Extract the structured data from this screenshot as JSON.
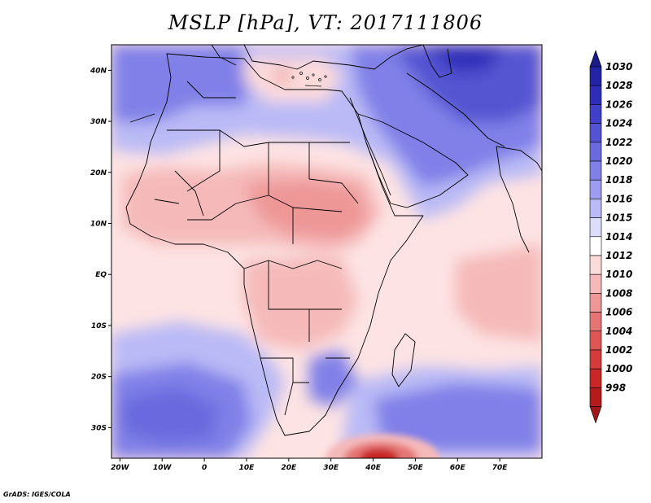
{
  "title": "MSLP [hPa], VT: 2017111806",
  "credit": "GrADS: IGES/COLA",
  "lat_ticks": [
    {
      "label": "40N",
      "lat": 40
    },
    {
      "label": "30N",
      "lat": 30
    },
    {
      "label": "20N",
      "lat": 20
    },
    {
      "label": "10N",
      "lat": 10
    },
    {
      "label": "EQ",
      "lat": 0
    },
    {
      "label": "10S",
      "lat": -10
    },
    {
      "label": "20S",
      "lat": -20
    },
    {
      "label": "30S",
      "lat": -30
    }
  ],
  "lon_ticks": [
    {
      "label": "20W",
      "lon": -20
    },
    {
      "label": "10W",
      "lon": -10
    },
    {
      "label": "0",
      "lon": 0
    },
    {
      "label": "10E",
      "lon": 10
    },
    {
      "label": "20E",
      "lon": 20
    },
    {
      "label": "30E",
      "lon": 30
    },
    {
      "label": "40E",
      "lon": 40
    },
    {
      "label": "50E",
      "lon": 50
    },
    {
      "label": "60E",
      "lon": 60
    },
    {
      "label": "70E",
      "lon": 70
    }
  ],
  "map_extent": {
    "lon_min": -22,
    "lon_max": 80,
    "lat_min": -36,
    "lat_max": 45
  },
  "colorbar": {
    "labels": [
      "1030",
      "1028",
      "1026",
      "1024",
      "1022",
      "1020",
      "1018",
      "1016",
      "1015",
      "1014",
      "1012",
      "1010",
      "1008",
      "1006",
      "1004",
      "1002",
      "1000",
      "998"
    ],
    "colors": [
      "#2323a5",
      "#2d2db9",
      "#4040c9",
      "#5454d2",
      "#6a6ade",
      "#8080e8",
      "#9c9cf0",
      "#babaf6",
      "#dcdcfb",
      "#ffffff",
      "#fbdada",
      "#f5b9b9",
      "#ee9797",
      "#e57575",
      "#dd5757",
      "#d43c3c",
      "#c82727",
      "#b41c1c"
    ],
    "top_arrow_color": "#1a1a8a",
    "bottom_arrow_color": "#a01818"
  }
}
